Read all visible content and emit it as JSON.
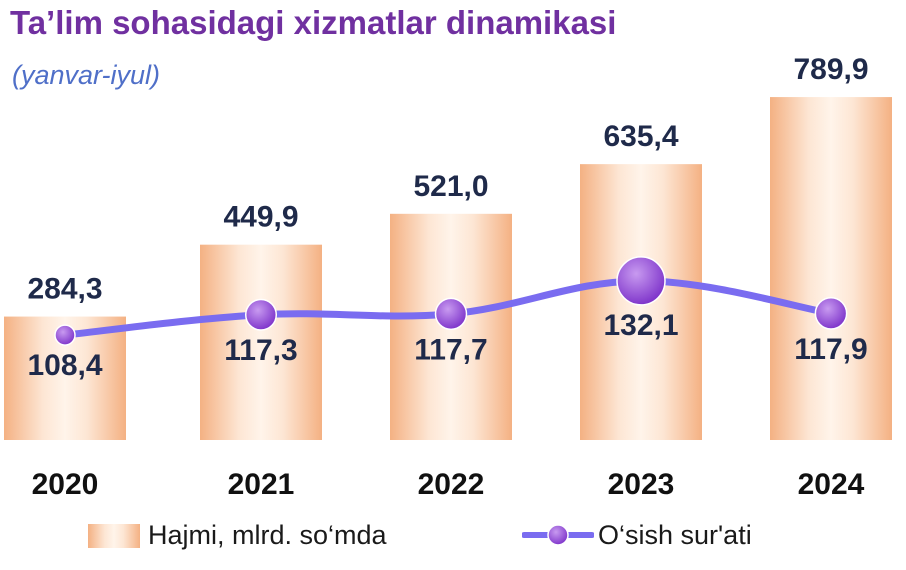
{
  "title": "Ta’lim sohasidagi xizmatlar dinamikasi",
  "subtitle": "(yanvar-iyul)",
  "colors": {
    "title": "#7030a0",
    "subtitle": "#4f6fc8",
    "bar_edge": "#f4b183",
    "bar_center": "#fff2e8",
    "line": "#7a6cf0",
    "marker": "#8e44d8",
    "label": "#1f2a4a"
  },
  "chart_data": {
    "type": "bar",
    "categories": [
      "2020",
      "2021",
      "2022",
      "2023",
      "2024"
    ],
    "series": [
      {
        "name": "Hajmi, mlrd. so‘mda",
        "type": "bar",
        "values": [
          284.3,
          449.9,
          521.0,
          635.4,
          789.9
        ],
        "labels": [
          "284,3",
          "449,9",
          "521,0",
          "635,4",
          "789,9"
        ]
      },
      {
        "name": "O‘sish sur'ati",
        "type": "line",
        "values": [
          108.4,
          117.3,
          117.7,
          132.1,
          117.9
        ],
        "labels": [
          "108,4",
          "117,3",
          "117,7",
          "132,1",
          "117,9"
        ]
      }
    ],
    "ylim": [
      0,
      820
    ],
    "y2lim": [
      80,
      150
    ],
    "grid": false,
    "legend": "bottom"
  }
}
